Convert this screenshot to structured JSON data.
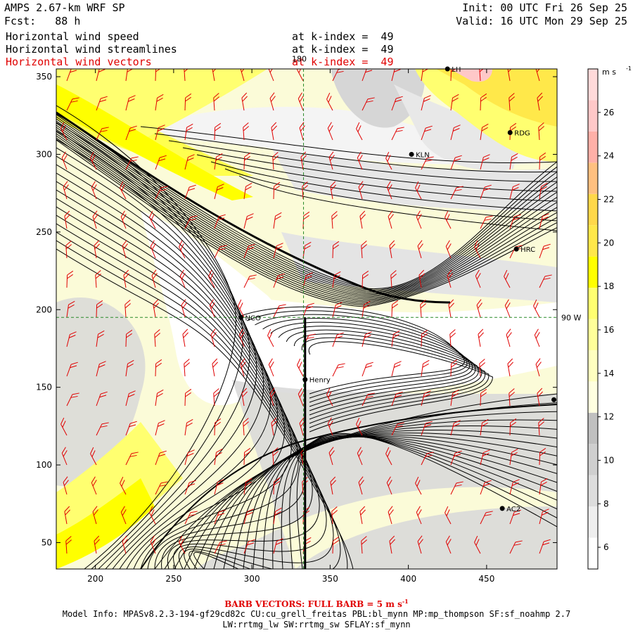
{
  "header": {
    "title": "AMPS 2.67-km WRF SP",
    "forecast": "Fcst:   88 h",
    "init": "Init: 00 UTC Fri 26 Sep 25",
    "valid": "Valid: 16 UTC Mon 29 Sep 25",
    "fields": [
      {
        "name": "Horizontal wind speed",
        "level": "at k-index =  49"
      },
      {
        "name": "Horizontal wind streamlines",
        "level": "at k-index =  49"
      },
      {
        "name": "Horizontal wind vectors",
        "level": "at k-index =  49"
      }
    ]
  },
  "colors": {
    "vectors": "#e00000",
    "streamlines": "#000000",
    "grid_lines": "#2a8a2a",
    "colorbar": [
      "#ffffff",
      "#eeeeee",
      "#dddddd",
      "#cfcfcf",
      "#c0c0c0",
      "#ffffe0",
      "#ffffc0",
      "#ffff9a",
      "#ffff70",
      "#ffff00",
      "#ffe84a",
      "#ffd84a",
      "#ffc080",
      "#ffb0a8",
      "#ffc8c8",
      "#ffdada"
    ]
  },
  "footer": {
    "barb": "BARB VECTORS:  FULL BARB = 5 m s",
    "barb_exp": "-1",
    "model_info": "Model Info: MPASv8.2.3-194-gf29cd82c CU:cu_grell_freitas PBL:bl_mynn MP:mp_thompson SF:sf_noahmp 2.7",
    "model_info2": "LW:rrtmg_lw SW:rrtmg_sw SFLAY:sf_mynn"
  },
  "chart_data": {
    "type": "heatmap",
    "xlim": [
      175,
      495
    ],
    "ylim": [
      33,
      355
    ],
    "x_ticks": [
      200,
      250,
      300,
      350,
      400,
      450
    ],
    "y_ticks": [
      50,
      100,
      150,
      200,
      250,
      300,
      350
    ],
    "colorbar": {
      "units": "m s",
      "units_exp": "-1",
      "ticks": [
        6,
        8,
        10,
        12,
        14,
        16,
        18,
        20,
        22,
        24,
        26
      ],
      "range": [
        5,
        28
      ]
    },
    "grid_labels": [
      {
        "text": "180",
        "x": 333,
        "y": 357
      },
      {
        "text": "90 W",
        "x": 495,
        "y": 195
      }
    ],
    "grid_lines": {
      "meridian_x": 333,
      "parallel_y": 195
    },
    "stations": [
      {
        "name": "LH",
        "x": 425,
        "y": 355
      },
      {
        "name": "RDG",
        "x": 465,
        "y": 314
      },
      {
        "name": "KLN",
        "x": 402,
        "y": 300
      },
      {
        "name": "HRC",
        "x": 469,
        "y": 239
      },
      {
        "name": "NCO",
        "x": 293,
        "y": 195
      },
      {
        "name": "Henry",
        "x": 334,
        "y": 155
      },
      {
        "name": "AC2",
        "x": 460,
        "y": 72
      },
      {
        "name": "",
        "x": 493,
        "y": 142
      }
    ],
    "cross_section": {
      "x": 334,
      "y0": 33,
      "y1": 195
    }
  }
}
